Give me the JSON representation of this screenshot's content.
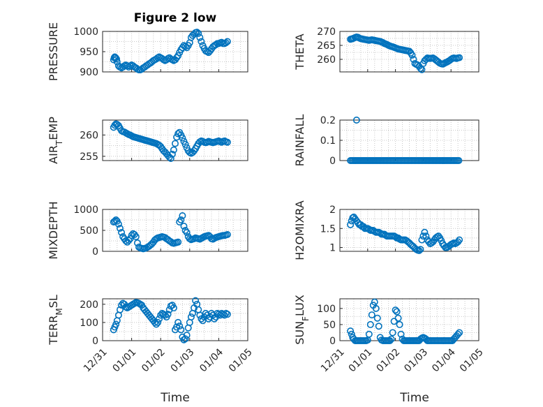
{
  "figure_title": "Figure 2 low",
  "marker_color": "#0072BD",
  "x_tick_labels": [
    "12/31",
    "01/01",
    "01/02",
    "01/03",
    "01/04",
    "01/05"
  ],
  "x_axis_label": "Time",
  "chart_data": [
    {
      "id": "pressure",
      "type": "scatter",
      "title": "Figure 2 low",
      "ylabel": "PRESSURE",
      "ylim": [
        900,
        1000
      ],
      "yticks": [
        900,
        950,
        1000
      ],
      "x": [
        0.38,
        0.4,
        0.42,
        0.45,
        0.48,
        0.5,
        0.55,
        0.6,
        0.65,
        0.7,
        0.75,
        0.8,
        0.85,
        0.9,
        0.95,
        1.0,
        1.05,
        1.1,
        1.15,
        1.2,
        1.25,
        1.3,
        1.35,
        1.4,
        1.45,
        1.5,
        1.55,
        1.6,
        1.65,
        1.7,
        1.75,
        1.8,
        1.85,
        1.9,
        1.95,
        2.0,
        2.05,
        2.1,
        2.15,
        2.2,
        2.25,
        2.3,
        2.35,
        2.4,
        2.45,
        2.5,
        2.55,
        2.6,
        2.65,
        2.7,
        2.75,
        2.8,
        2.85,
        2.9,
        2.95,
        3.0,
        3.05,
        3.1,
        3.15,
        3.2,
        3.25,
        3.3,
        3.35,
        3.4,
        3.45,
        3.5,
        3.55,
        3.6,
        3.65,
        3.7,
        3.75,
        3.8,
        3.85,
        3.9,
        3.95,
        4.0,
        4.05,
        4.1,
        4.15,
        4.2,
        4.25,
        4.3
      ],
      "y": [
        930,
        935,
        937,
        935,
        932,
        925,
        915,
        912,
        910,
        912,
        915,
        917,
        915,
        912,
        915,
        917,
        915,
        912,
        910,
        907,
        905,
        905,
        907,
        910,
        912,
        915,
        917,
        920,
        922,
        925,
        928,
        930,
        932,
        935,
        937,
        935,
        933,
        930,
        928,
        930,
        933,
        935,
        932,
        930,
        928,
        930,
        935,
        940,
        948,
        955,
        960,
        965,
        963,
        960,
        965,
        972,
        985,
        990,
        993,
        997,
        998,
        995,
        985,
        975,
        965,
        958,
        952,
        950,
        948,
        952,
        957,
        962,
        965,
        967,
        970,
        970,
        972,
        973,
        970,
        970,
        972,
        975
      ]
    },
    {
      "id": "theta",
      "type": "scatter",
      "ylabel": "THETA",
      "ylim": [
        255.5,
        270
      ],
      "yticks": [
        260,
        265,
        270
      ],
      "x": [
        0.38,
        0.42,
        0.46,
        0.5,
        0.55,
        0.6,
        0.65,
        0.7,
        0.75,
        0.8,
        0.85,
        0.9,
        0.95,
        1.0,
        1.05,
        1.1,
        1.15,
        1.2,
        1.25,
        1.3,
        1.35,
        1.4,
        1.45,
        1.5,
        1.55,
        1.6,
        1.65,
        1.7,
        1.75,
        1.8,
        1.85,
        1.9,
        1.95,
        2.0,
        2.05,
        2.1,
        2.15,
        2.2,
        2.25,
        2.3,
        2.35,
        2.4,
        2.45,
        2.5,
        2.55,
        2.6,
        2.65,
        2.7,
        2.75,
        2.8,
        2.85,
        2.9,
        2.95,
        3.0,
        3.05,
        3.1,
        3.15,
        3.2,
        3.25,
        3.3,
        3.35,
        3.4,
        3.45,
        3.5,
        3.55,
        3.6,
        3.65,
        3.7,
        3.75,
        3.8,
        3.85,
        3.9,
        3.95,
        4.0,
        4.05,
        4.1,
        4.15,
        4.2,
        4.25,
        4.3
      ],
      "y": [
        267.2,
        267.3,
        267.4,
        267.6,
        267.8,
        268.0,
        267.9,
        267.6,
        267.4,
        267.3,
        267.2,
        267.1,
        267.0,
        266.9,
        266.8,
        266.9,
        267.0,
        266.9,
        266.8,
        266.7,
        266.6,
        266.5,
        266.4,
        266.2,
        266.0,
        265.7,
        265.5,
        265.3,
        265.0,
        264.8,
        264.6,
        264.5,
        264.3,
        264.1,
        263.9,
        263.7,
        263.6,
        263.5,
        263.4,
        263.3,
        263.2,
        263.1,
        263.0,
        262.9,
        262.3,
        261.5,
        260.0,
        258.5,
        258.2,
        258.0,
        257.5,
        256.8,
        256.3,
        258.5,
        259.5,
        260.0,
        260.5,
        260.4,
        260.3,
        260.4,
        260.5,
        260.2,
        259.8,
        259.4,
        259.0,
        258.6,
        258.4,
        258.3,
        258.5,
        258.8,
        259.0,
        259.3,
        259.6,
        260.0,
        260.3,
        260.5,
        260.4,
        260.3,
        260.5,
        260.6
      ]
    },
    {
      "id": "air_temp",
      "type": "scatter",
      "ylabel": "AIR_TEMP",
      "ylim": [
        254,
        263.5
      ],
      "yticks": [
        255,
        260
      ],
      "x": [
        0.38,
        0.42,
        0.46,
        0.5,
        0.55,
        0.6,
        0.65,
        0.7,
        0.75,
        0.8,
        0.85,
        0.9,
        0.95,
        1.0,
        1.05,
        1.1,
        1.15,
        1.2,
        1.25,
        1.3,
        1.35,
        1.4,
        1.45,
        1.5,
        1.55,
        1.6,
        1.65,
        1.7,
        1.75,
        1.8,
        1.85,
        1.9,
        1.95,
        2.0,
        2.05,
        2.1,
        2.15,
        2.2,
        2.25,
        2.3,
        2.35,
        2.4,
        2.45,
        2.5,
        2.55,
        2.6,
        2.65,
        2.7,
        2.75,
        2.8,
        2.85,
        2.9,
        2.95,
        3.0,
        3.05,
        3.1,
        3.15,
        3.2,
        3.25,
        3.3,
        3.35,
        3.4,
        3.45,
        3.5,
        3.55,
        3.6,
        3.65,
        3.7,
        3.75,
        3.8,
        3.85,
        3.9,
        3.95,
        4.0,
        4.05,
        4.1,
        4.15,
        4.2,
        4.25,
        4.3
      ],
      "y": [
        261.8,
        262.3,
        262.6,
        262.5,
        262.2,
        261.6,
        261.0,
        260.8,
        260.7,
        260.5,
        260.3,
        260.1,
        260.0,
        259.8,
        259.6,
        259.5,
        259.4,
        259.3,
        259.2,
        259.1,
        259.0,
        258.9,
        258.8,
        258.7,
        258.6,
        258.5,
        258.4,
        258.3,
        258.2,
        258.1,
        258.0,
        257.8,
        257.6,
        257.3,
        256.8,
        256.3,
        256.0,
        255.6,
        255.2,
        254.8,
        254.5,
        255.5,
        256.5,
        258.0,
        259.5,
        260.3,
        260.6,
        260.0,
        259.3,
        258.5,
        257.8,
        257.0,
        256.3,
        255.9,
        255.7,
        255.9,
        256.3,
        256.8,
        257.4,
        258.0,
        258.4,
        258.6,
        258.5,
        258.3,
        258.2,
        258.3,
        258.5,
        258.4,
        258.3,
        258.2,
        258.3,
        258.4,
        258.5,
        258.6,
        258.4,
        258.3,
        258.5,
        258.6,
        258.4,
        258.3
      ]
    },
    {
      "id": "rainfall",
      "type": "scatter",
      "ylabel": "RAINFALL",
      "ylim": [
        0,
        0.2
      ],
      "yticks": [
        0,
        0.1,
        0.2
      ],
      "ytick_labels": [
        "0",
        "0.1",
        "0.2"
      ],
      "x": [
        0.6
      ],
      "y": [
        0.2
      ],
      "baseline_range": [
        0.38,
        4.3
      ],
      "baseline_value": 0
    },
    {
      "id": "mixdepth",
      "type": "scatter",
      "ylabel": "MIXDEPTH",
      "ylim": [
        0,
        1000
      ],
      "yticks": [
        0,
        500,
        1000
      ],
      "x": [
        0.38,
        0.42,
        0.46,
        0.5,
        0.55,
        0.6,
        0.65,
        0.7,
        0.75,
        0.8,
        0.85,
        0.9,
        0.95,
        1.0,
        1.05,
        1.1,
        1.15,
        1.2,
        1.25,
        1.3,
        1.35,
        1.4,
        1.45,
        1.5,
        1.55,
        1.6,
        1.65,
        1.7,
        1.75,
        1.8,
        1.85,
        1.9,
        1.95,
        2.0,
        2.05,
        2.1,
        2.15,
        2.2,
        2.25,
        2.3,
        2.35,
        2.4,
        2.45,
        2.5,
        2.55,
        2.6,
        2.65,
        2.7,
        2.75,
        2.8,
        2.85,
        2.9,
        2.95,
        3.0,
        3.05,
        3.1,
        3.15,
        3.2,
        3.25,
        3.3,
        3.35,
        3.4,
        3.45,
        3.5,
        3.55,
        3.6,
        3.65,
        3.7,
        3.75,
        3.8,
        3.85,
        3.9,
        3.95,
        4.0,
        4.05,
        4.1,
        4.15,
        4.2,
        4.25,
        4.3
      ],
      "y": [
        700,
        720,
        750,
        720,
        650,
        550,
        450,
        350,
        300,
        250,
        220,
        260,
        300,
        380,
        420,
        400,
        350,
        200,
        100,
        80,
        70,
        60,
        70,
        80,
        100,
        120,
        150,
        180,
        220,
        270,
        300,
        320,
        330,
        340,
        350,
        340,
        330,
        300,
        280,
        250,
        230,
        200,
        190,
        200,
        210,
        220,
        700,
        750,
        850,
        600,
        500,
        450,
        350,
        300,
        280,
        290,
        300,
        320,
        310,
        300,
        290,
        310,
        330,
        350,
        360,
        370,
        380,
        350,
        300,
        290,
        310,
        330,
        340,
        350,
        360,
        370,
        380,
        380,
        390,
        400
      ]
    },
    {
      "id": "h2omixra",
      "type": "scatter",
      "ylabel": "H2OMIXRA",
      "ylim": [
        0.9,
        2.0
      ],
      "yticks": [
        1,
        1.5,
        2
      ],
      "ytick_labels": [
        "1",
        "1.5",
        "2"
      ],
      "x": [
        0.38,
        0.42,
        0.46,
        0.5,
        0.55,
        0.6,
        0.65,
        0.7,
        0.75,
        0.8,
        0.85,
        0.9,
        0.95,
        1.0,
        1.05,
        1.1,
        1.15,
        1.2,
        1.25,
        1.3,
        1.35,
        1.4,
        1.45,
        1.5,
        1.55,
        1.6,
        1.65,
        1.7,
        1.75,
        1.8,
        1.85,
        1.9,
        1.95,
        2.0,
        2.05,
        2.1,
        2.15,
        2.2,
        2.25,
        2.3,
        2.35,
        2.4,
        2.45,
        2.5,
        2.55,
        2.6,
        2.65,
        2.7,
        2.75,
        2.8,
        2.85,
        2.9,
        2.95,
        3.0,
        3.05,
        3.1,
        3.15,
        3.2,
        3.25,
        3.3,
        3.35,
        3.4,
        3.45,
        3.5,
        3.55,
        3.6,
        3.65,
        3.7,
        3.75,
        3.8,
        3.85,
        3.9,
        3.95,
        4.0,
        4.05,
        4.1,
        4.15,
        4.2,
        4.25,
        4.3
      ],
      "y": [
        1.6,
        1.7,
        1.78,
        1.8,
        1.75,
        1.7,
        1.65,
        1.6,
        1.6,
        1.55,
        1.55,
        1.5,
        1.5,
        1.5,
        1.48,
        1.45,
        1.45,
        1.45,
        1.42,
        1.4,
        1.4,
        1.4,
        1.38,
        1.35,
        1.35,
        1.35,
        1.32,
        1.3,
        1.3,
        1.3,
        1.3,
        1.3,
        1.3,
        1.28,
        1.25,
        1.25,
        1.22,
        1.2,
        1.2,
        1.2,
        1.2,
        1.18,
        1.15,
        1.12,
        1.08,
        1.05,
        1.02,
        0.98,
        0.95,
        0.93,
        0.92,
        0.95,
        1.2,
        1.3,
        1.4,
        1.3,
        1.2,
        1.15,
        1.1,
        1.12,
        1.15,
        1.2,
        1.25,
        1.28,
        1.3,
        1.25,
        1.18,
        1.1,
        1.05,
        1.0,
        1.0,
        1.02,
        1.05,
        1.08,
        1.1,
        1.12,
        1.1,
        1.12,
        1.15,
        1.2
      ]
    },
    {
      "id": "terr_msl",
      "type": "scatter",
      "ylabel": "TERR_MSL",
      "ylim": [
        0,
        230
      ],
      "yticks": [
        0,
        100,
        200
      ],
      "x": [
        0.38,
        0.42,
        0.46,
        0.5,
        0.55,
        0.6,
        0.65,
        0.7,
        0.75,
        0.8,
        0.85,
        0.9,
        0.95,
        1.0,
        1.05,
        1.1,
        1.15,
        1.2,
        1.25,
        1.3,
        1.35,
        1.4,
        1.45,
        1.5,
        1.55,
        1.6,
        1.65,
        1.7,
        1.75,
        1.8,
        1.85,
        1.9,
        1.95,
        2.0,
        2.05,
        2.1,
        2.15,
        2.2,
        2.25,
        2.3,
        2.35,
        2.4,
        2.45,
        2.5,
        2.55,
        2.6,
        2.65,
        2.7,
        2.75,
        2.8,
        2.85,
        2.9,
        2.95,
        3.0,
        3.05,
        3.1,
        3.15,
        3.2,
        3.25,
        3.3,
        3.35,
        3.4,
        3.45,
        3.5,
        3.55,
        3.6,
        3.65,
        3.7,
        3.75,
        3.8,
        3.85,
        3.9,
        3.95,
        4.0,
        4.05,
        4.1,
        4.15,
        4.2,
        4.25,
        4.3
      ],
      "y": [
        60,
        75,
        90,
        110,
        140,
        170,
        195,
        205,
        200,
        185,
        180,
        185,
        190,
        195,
        200,
        205,
        210,
        208,
        205,
        200,
        195,
        180,
        170,
        160,
        150,
        140,
        130,
        120,
        110,
        100,
        90,
        100,
        120,
        140,
        150,
        145,
        140,
        130,
        145,
        170,
        190,
        195,
        180,
        60,
        75,
        100,
        80,
        60,
        20,
        5,
        10,
        30,
        70,
        100,
        130,
        150,
        180,
        220,
        200,
        170,
        140,
        120,
        110,
        130,
        150,
        140,
        120,
        130,
        150,
        140,
        120,
        130,
        150,
        145,
        140,
        150,
        145,
        140,
        150,
        145
      ]
    },
    {
      "id": "sun_flux",
      "type": "scatter",
      "ylabel": "SUN_FLUX",
      "ylim": [
        0,
        130
      ],
      "yticks": [
        0,
        50,
        100
      ],
      "x": [
        0.38,
        0.42,
        0.46,
        0.5,
        0.55,
        0.6,
        0.65,
        0.7,
        0.75,
        0.8,
        0.85,
        0.9,
        0.95,
        1.0,
        1.05,
        1.1,
        1.15,
        1.2,
        1.25,
        1.3,
        1.35,
        1.4,
        1.45,
        1.5,
        1.55,
        1.6,
        1.65,
        1.7,
        1.75,
        1.8,
        1.85,
        1.9,
        1.95,
        2.0,
        2.05,
        2.1,
        2.15,
        2.2,
        2.25,
        2.3,
        2.35,
        2.4,
        2.45,
        2.5,
        2.55,
        2.6,
        2.65,
        2.7,
        2.75,
        2.8,
        2.85,
        2.9,
        2.95,
        3.0,
        3.05,
        3.1,
        3.15,
        3.2,
        3.25,
        3.3,
        3.35,
        3.4,
        3.45,
        3.5,
        3.55,
        3.6,
        3.65,
        3.7,
        3.75,
        3.8,
        3.85,
        3.9,
        3.95,
        4.0,
        4.05,
        4.1,
        4.15,
        4.2,
        4.25,
        4.3
      ],
      "y": [
        30,
        20,
        10,
        5,
        0,
        0,
        0,
        0,
        0,
        0,
        0,
        0,
        0,
        2,
        20,
        50,
        80,
        110,
        120,
        100,
        70,
        45,
        10,
        2,
        0,
        0,
        0,
        0,
        0,
        0,
        5,
        25,
        60,
        95,
        90,
        70,
        50,
        20,
        5,
        0,
        0,
        0,
        0,
        0,
        0,
        0,
        0,
        0,
        0,
        0,
        0,
        5,
        8,
        10,
        8,
        5,
        0,
        0,
        0,
        0,
        0,
        0,
        0,
        0,
        0,
        0,
        0,
        0,
        0,
        0,
        0,
        0,
        0,
        0,
        0,
        5,
        10,
        15,
        20,
        25
      ]
    }
  ]
}
